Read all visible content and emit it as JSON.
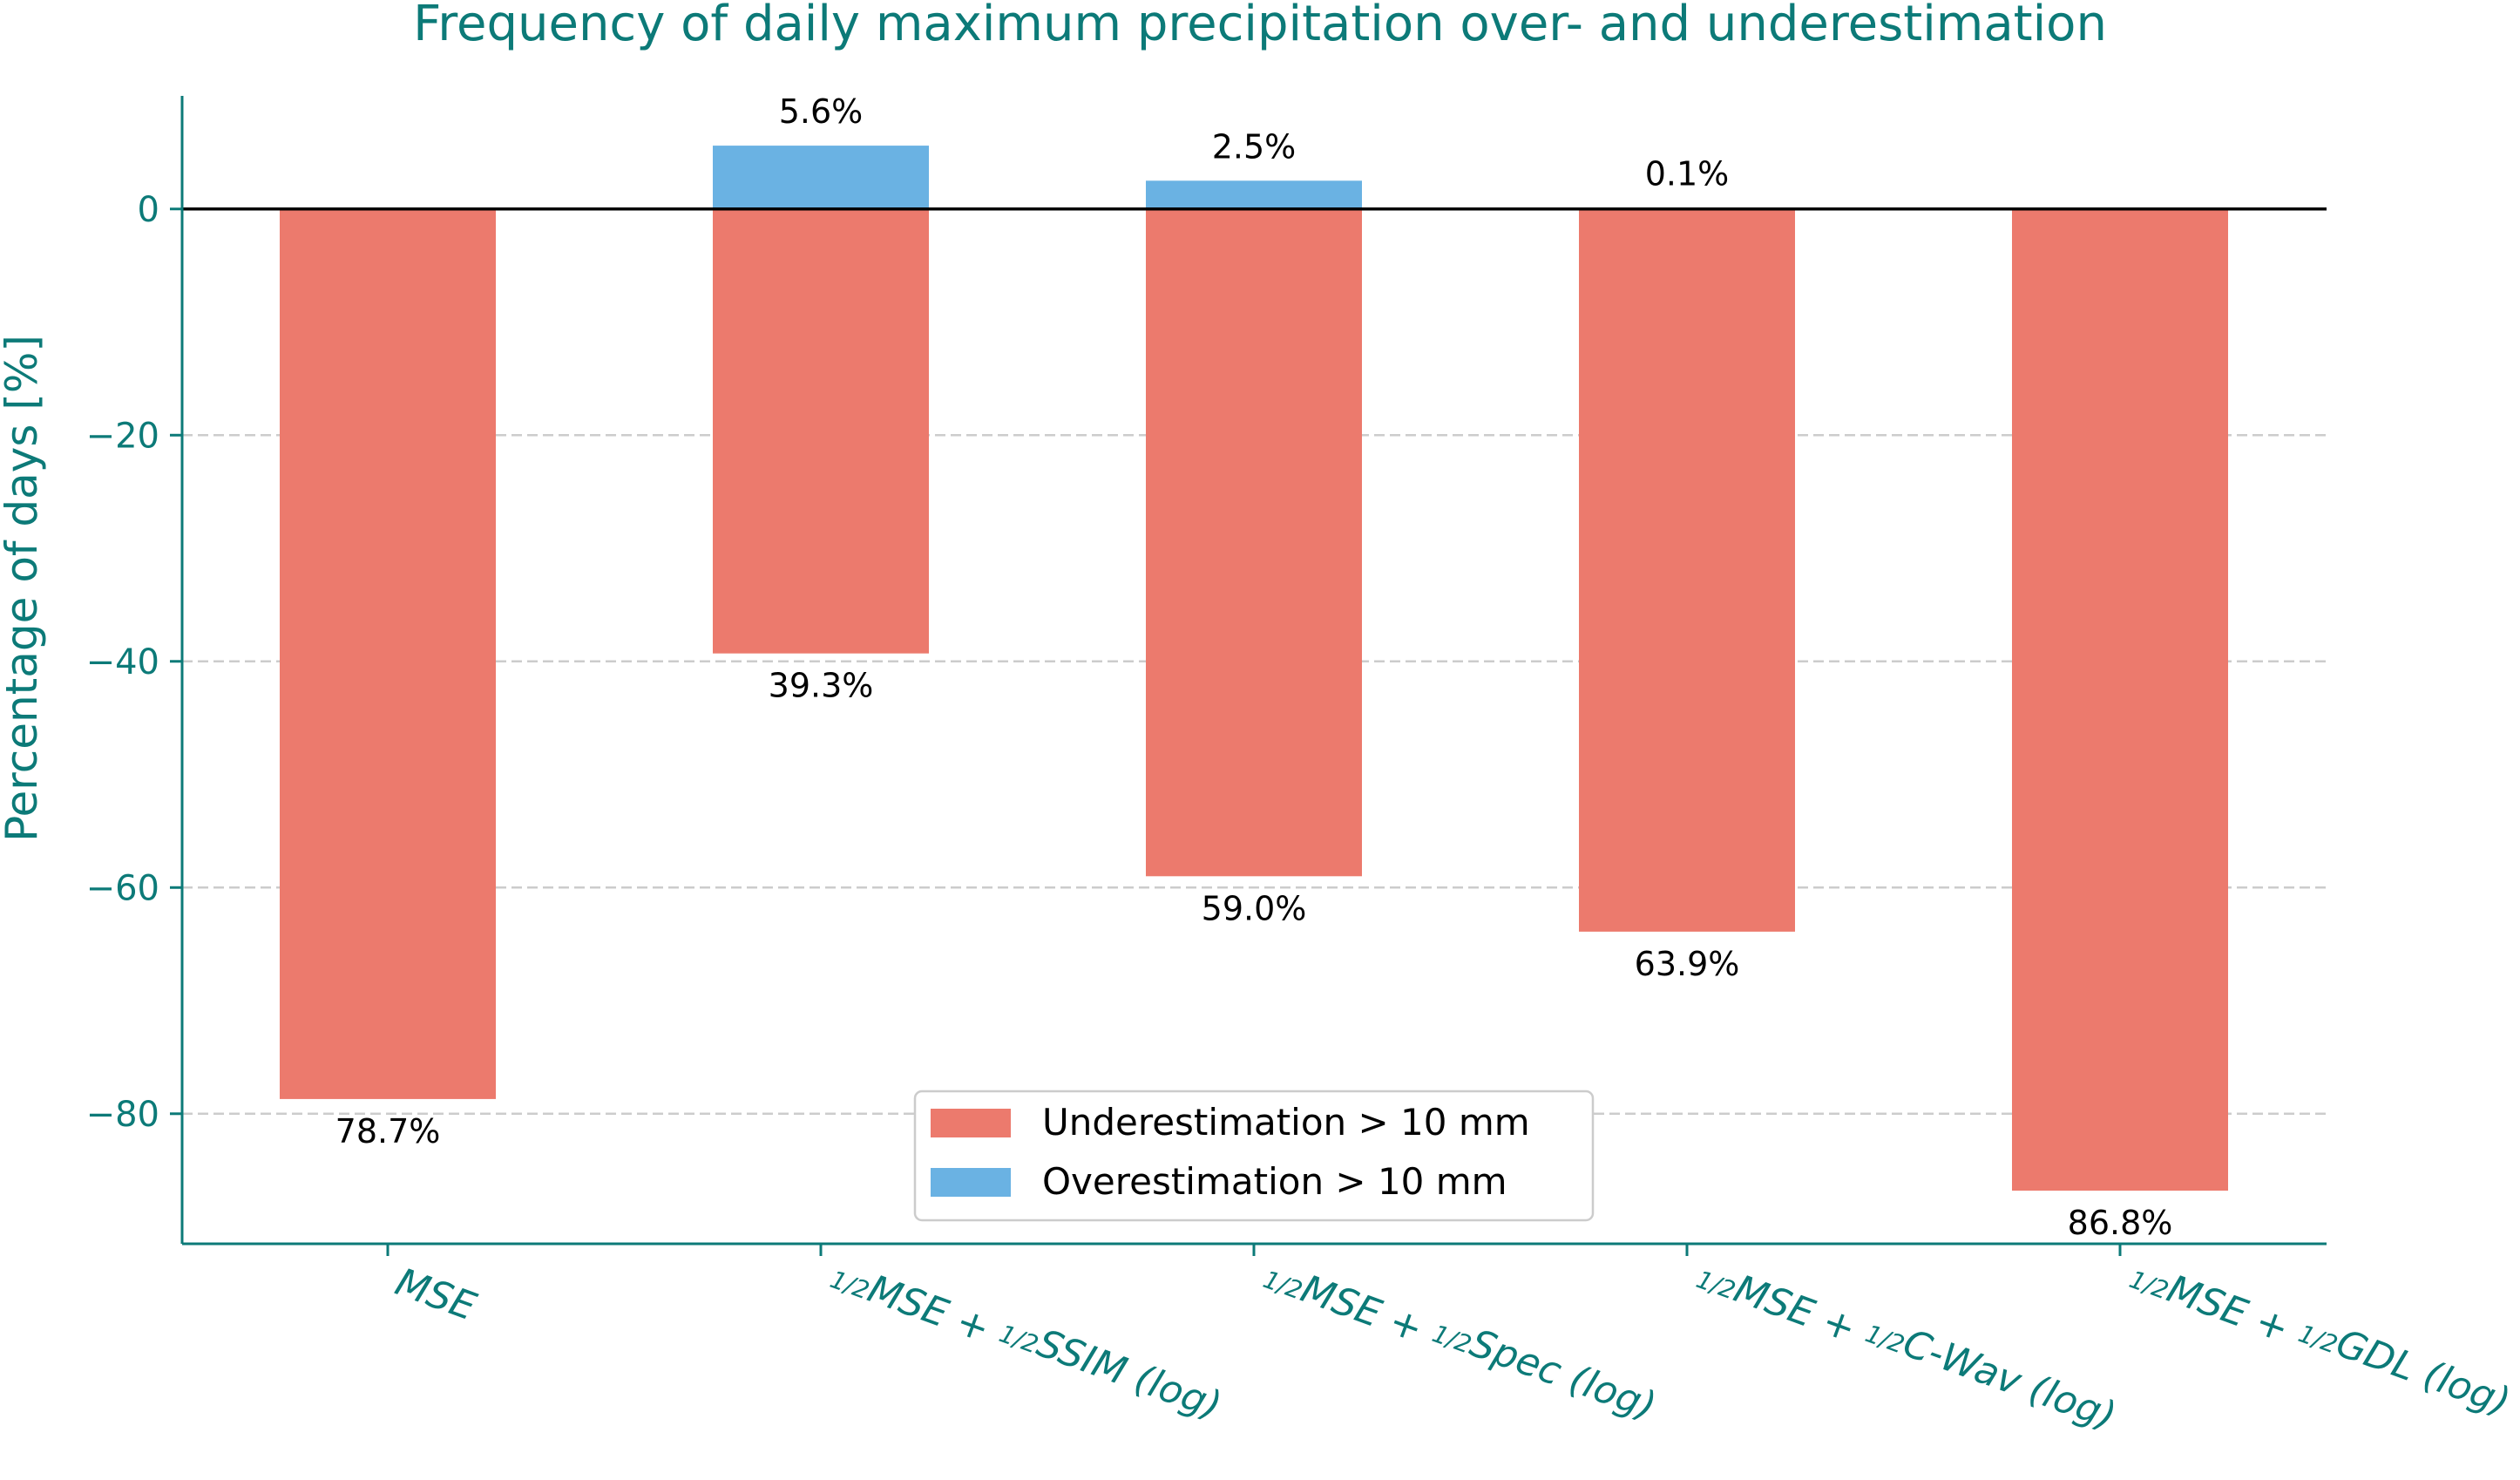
{
  "chart_data": {
    "type": "bar",
    "title": "Frequency of daily maximum precipitation over- and underestimation",
    "xlabel": "",
    "ylabel": "Percentage of days [%]",
    "ylim": [
      -91.5,
      10
    ],
    "yticks": [
      0,
      -20,
      -40,
      -60,
      -80
    ],
    "ytick_labels": [
      "0",
      "−20",
      "−40",
      "−60",
      "−80"
    ],
    "grid": "y-dashed",
    "legend_position": "bottom-center",
    "categories": [
      {
        "key": "mse",
        "pre": "",
        "a": "",
        "mid": "MSE",
        "b": "",
        "post": ""
      },
      {
        "key": "mse-ssim",
        "pre": "",
        "a": "1/2",
        "mid": "MSE + ",
        "b": "1/2",
        "post": "SSIM (log)"
      },
      {
        "key": "mse-spec",
        "pre": "",
        "a": "1/2",
        "mid": "MSE + ",
        "b": "1/2",
        "post": "Spec (log)"
      },
      {
        "key": "mse-cwav",
        "pre": "",
        "a": "1/2",
        "mid": "MSE + ",
        "b": "1/2",
        "post": "C-Wav (log)"
      },
      {
        "key": "mse-gdl",
        "pre": "",
        "a": "1/2",
        "mid": "MSE + ",
        "b": "1/2",
        "post": "GDL (log)"
      }
    ],
    "series": [
      {
        "name": "Underestimation > 10 mm",
        "color": "#ec7a6d",
        "values": [
          -78.7,
          -39.3,
          -59.0,
          -63.9,
          -86.8
        ],
        "labels": [
          "78.7%",
          "39.3%",
          "59.0%",
          "63.9%",
          "86.8%"
        ]
      },
      {
        "name": "Overestimation > 10 mm",
        "color": "#6ab2e3",
        "values": [
          0.0,
          5.6,
          2.5,
          0.1,
          0.0
        ],
        "labels": [
          "",
          "5.6%",
          "2.5%",
          "0.1%",
          ""
        ]
      }
    ],
    "colors": {
      "axis": "#0c7a78",
      "grid": "#cccccc",
      "zero_line": "#000000"
    }
  }
}
